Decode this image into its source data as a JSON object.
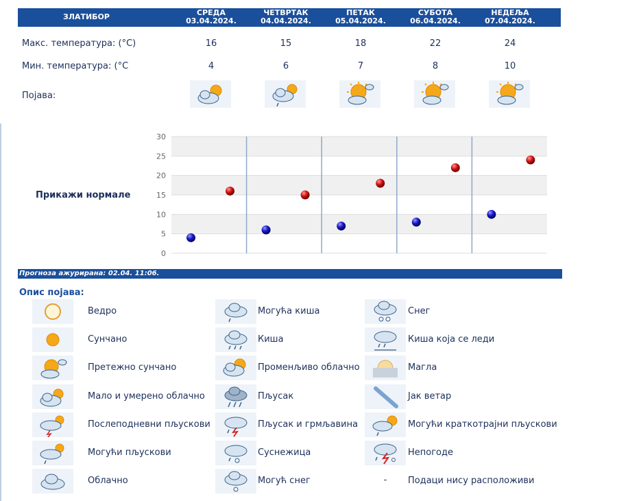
{
  "station": "ЗЛАТИБОР",
  "days": [
    {
      "name": "СРЕДА",
      "date": "03.04.2024.",
      "max": "16",
      "min": "4",
      "icon": "partly-cloudy-icon"
    },
    {
      "name": "ЧЕТВРТАК",
      "date": "04.04.2024.",
      "max": "15",
      "min": "6",
      "icon": "possible-showers-icon"
    },
    {
      "name": "ПЕТАК",
      "date": "05.04.2024.",
      "max": "18",
      "min": "7",
      "icon": "mostly-sunny-icon"
    },
    {
      "name": "СУБОТА",
      "date": "06.04.2024.",
      "max": "22",
      "min": "8",
      "icon": "mostly-sunny-icon"
    },
    {
      "name": "НЕДЕЉА",
      "date": "07.04.2024.",
      "max": "24",
      "min": "10",
      "icon": "mostly-sunny-icon"
    }
  ],
  "labels": {
    "max_temp": "Макс. температура: (°C)",
    "min_temp": "Мин. температура: (°C",
    "phenomenon": "Појава:",
    "show_normals": "Прикажи нормале",
    "legend_title": "Опис појава:"
  },
  "update": "Прогноза ажурирана:  02.04.  11:06.",
  "chart_data": {
    "type": "scatter",
    "title": "",
    "xlabel": "",
    "ylabel": "",
    "categories": [
      "СРЕДА",
      "ЧЕТВРТАК",
      "ПЕТАК",
      "СУБОТА",
      "НЕДЕЉА"
    ],
    "ylim": [
      0,
      30
    ],
    "yticks": [
      "0",
      "5",
      "10",
      "15",
      "20",
      "25",
      "30"
    ],
    "grid": true,
    "series": [
      {
        "values": [
          16,
          15,
          18,
          22,
          24
        ],
        "color": "#cc1111"
      },
      {
        "values": [
          4,
          6,
          7,
          8,
          10
        ],
        "color": "#1a1acc"
      }
    ]
  },
  "legend": [
    {
      "icon": "clear-sun-icon",
      "label": "Ведро"
    },
    {
      "icon": "sunny-icon",
      "label": "Сунчано"
    },
    {
      "icon": "mostly-sunny-icon",
      "label": "Претежно сунчано"
    },
    {
      "icon": "partly-cloudy-icon",
      "label": "Мало и умерено облачно"
    },
    {
      "icon": "afternoon-showers-icon",
      "label": "Послеподневни пљускови"
    },
    {
      "icon": "possible-showers-icon",
      "label": "Могући пљускови"
    },
    {
      "icon": "cloudy-icon",
      "label": "Облачно"
    },
    {
      "icon": "possible-rain-icon",
      "label": "Могућа киша"
    },
    {
      "icon": "rain-icon",
      "label": "Киша"
    },
    {
      "icon": "variable-cloudy-icon",
      "label": "Променљиво облачно"
    },
    {
      "icon": "shower-icon",
      "label": "Пљусак"
    },
    {
      "icon": "thunder-shower-icon",
      "label": "Пљусак и грмљавина"
    },
    {
      "icon": "sleet-icon",
      "label": "Суснежица"
    },
    {
      "icon": "possible-snow-icon",
      "label": "Могућ снег"
    },
    {
      "icon": "snow-icon",
      "label": "Снег"
    },
    {
      "icon": "freezing-rain-icon",
      "label": "Киша која се леди"
    },
    {
      "icon": "fog-icon",
      "label": "Магла"
    },
    {
      "icon": "strong-wind-icon",
      "label": "Јак ветар"
    },
    {
      "icon": "short-showers-icon",
      "label": "Могући краткотрајни пљускови"
    },
    {
      "icon": "storm-icon",
      "label": "Непогоде"
    },
    {
      "icon": "none",
      "symbol": "-",
      "label": "Подаци нису расположиви"
    }
  ]
}
